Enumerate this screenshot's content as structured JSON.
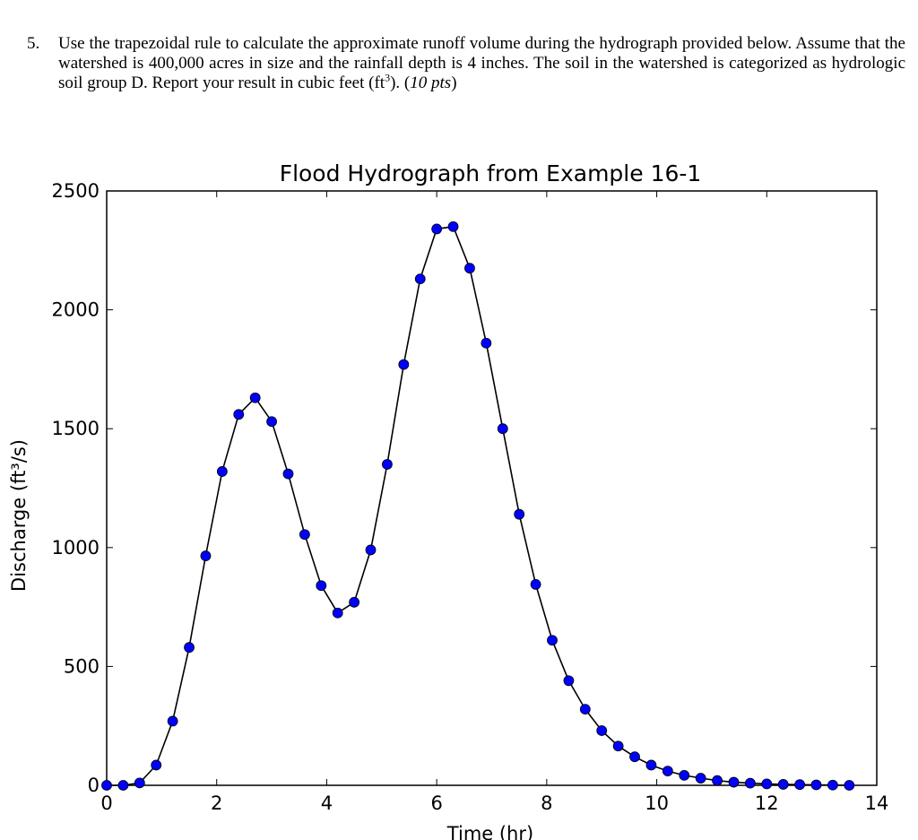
{
  "question": {
    "number": "5.",
    "text_main": "Use the trapezoidal rule to calculate the approximate runoff volume during the hydrograph provided below. Assume that the watershed is 400,000 acres in size and the rainfall depth is 4 inches. The soil in the watershed is categorized as hydrologic soil group D. Report your result in cubic feet (ft",
    "text_sup": "3",
    "text_after_sup": "). (",
    "points": "10 pts",
    "text_end": ")"
  },
  "chart_data": {
    "type": "line",
    "title": "Flood Hydrograph from Example 16-1",
    "xlabel": "Time (hr)",
    "ylabel": "Discharge (ft³/s)",
    "xlim": [
      0,
      14
    ],
    "ylim": [
      0,
      2500
    ],
    "xticks": [
      0,
      2,
      4,
      6,
      8,
      10,
      12,
      14
    ],
    "yticks": [
      0,
      500,
      1000,
      1500,
      2000,
      2500
    ],
    "grid": false,
    "line_color": "#000000",
    "marker_color": "#0000ff",
    "series": [
      {
        "x": [
          0,
          0.3,
          0.6,
          0.9,
          1.2,
          1.5,
          1.8,
          2.1,
          2.4,
          2.7,
          3.0,
          3.3,
          3.6,
          3.9,
          4.2,
          4.5,
          4.8,
          5.1,
          5.4,
          5.7,
          6.0,
          6.3,
          6.6,
          6.9,
          7.2,
          7.5,
          7.8,
          8.1,
          8.4,
          8.7,
          9.0,
          9.3,
          9.6,
          9.9,
          10.2,
          10.5,
          10.8,
          11.1,
          11.4,
          11.7,
          12.0,
          12.3,
          12.6,
          12.9,
          13.2,
          13.5
        ],
        "y": [
          0,
          0,
          10,
          85,
          270,
          580,
          965,
          1320,
          1560,
          1630,
          1530,
          1310,
          1055,
          840,
          725,
          770,
          990,
          1350,
          1770,
          2130,
          2340,
          2350,
          2175,
          1860,
          1500,
          1140,
          845,
          610,
          440,
          320,
          230,
          165,
          120,
          85,
          60,
          42,
          30,
          20,
          13,
          9,
          6,
          4,
          3,
          2,
          1,
          0
        ]
      }
    ]
  }
}
